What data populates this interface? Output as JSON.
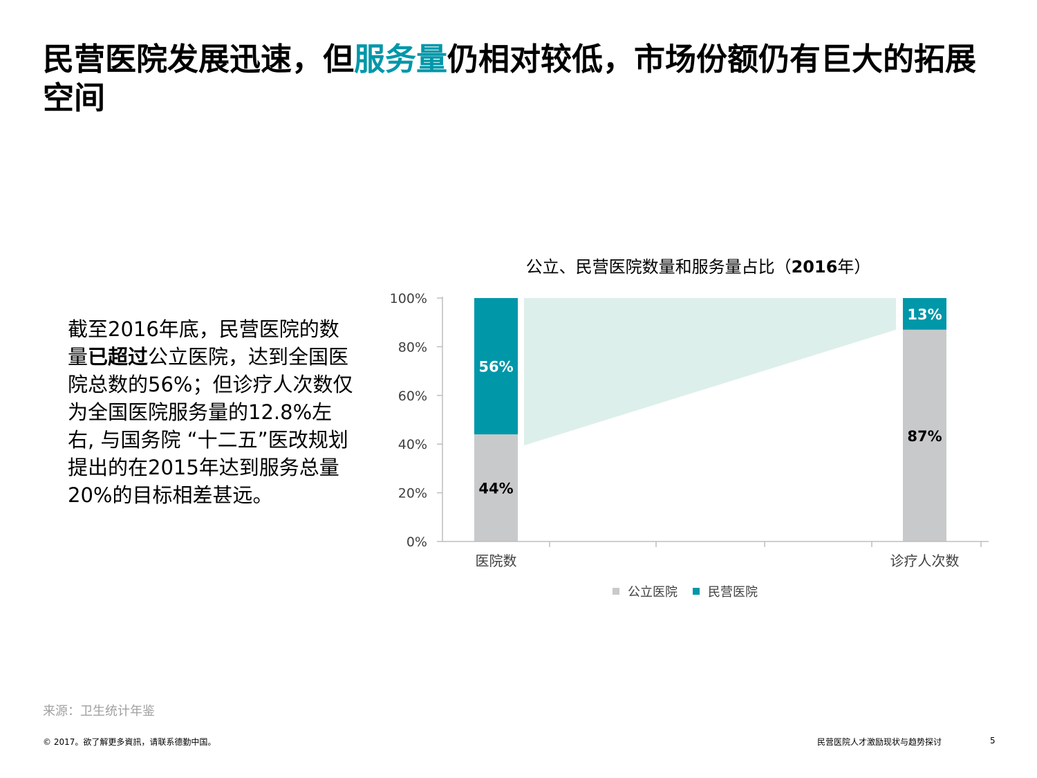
{
  "slide": {
    "title_part1": "民营医院发展迅速，但",
    "title_highlight": "服务量",
    "title_part2": "仍相对较低，市场份额仍有巨大的拓展空间",
    "body": {
      "t1": "截至2016年底，民营医院的数量",
      "t2_bold": "已超过",
      "t3": "公立医院，达到全国医院总数的56%；但诊疗人次数仅为全国医院服务量的12.8%左右, 与国务院 “十二五”医改规划提出的在2015年达到服务总量20%的目标相差甚远。"
    },
    "chart_title_part1": "公立、民营医院数量和服务量占比（",
    "chart_title_bold": "2016",
    "chart_title_part2": "年）",
    "source": "来源：卫生统计年鉴",
    "footer_left": "© 2017。欲了解更多資訊，请联系德勤中国。",
    "footer_right": "民营医院人才激励现状与趋势探讨",
    "page_number": "5"
  },
  "colors": {
    "public": "#C8C9CA",
    "private": "#0097A9",
    "connector": "#DDEFEA",
    "highlight": "#0097A9"
  },
  "chart_data": {
    "type": "bar",
    "stacked": true,
    "categories": [
      "医院数",
      "诊疗人次数"
    ],
    "series": [
      {
        "name": "公立医院",
        "values": [
          44,
          87
        ],
        "labels": [
          "44%",
          "87%"
        ]
      },
      {
        "name": "民营医院",
        "values": [
          56,
          13
        ],
        "labels": [
          "56%",
          "13%"
        ]
      }
    ],
    "ylim": [
      0,
      100
    ],
    "yticks": [
      0,
      20,
      40,
      60,
      80,
      100
    ],
    "ytick_labels": [
      "0%",
      "20%",
      "40%",
      "60%",
      "80%",
      "100%"
    ],
    "legend_position": "bottom"
  }
}
